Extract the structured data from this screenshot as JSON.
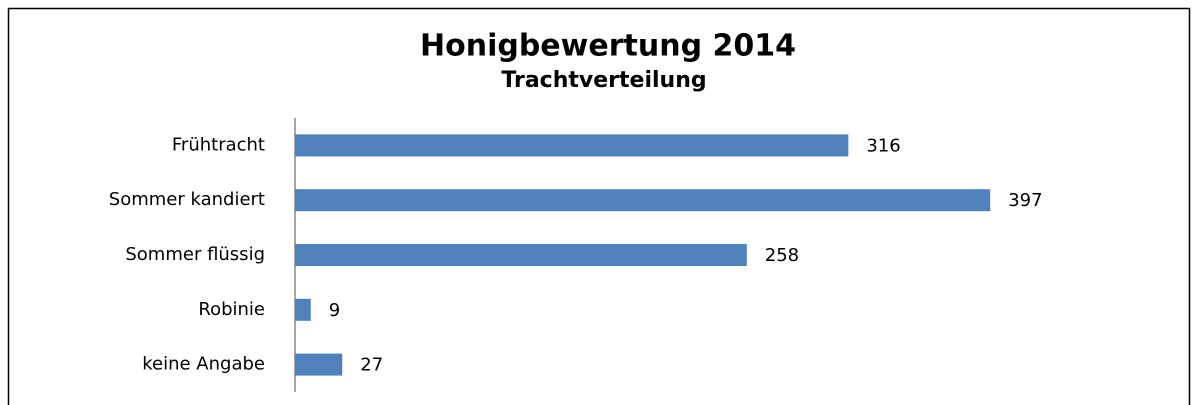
{
  "chart_data": {
    "type": "barh",
    "title": "Honigbewertung 2014",
    "subtitle": "Trachtverteilung",
    "categories": [
      "Frühtracht",
      "Sommer kandiert",
      "Sommer flüssig",
      "Robinie",
      "keine Angabe"
    ],
    "values": [
      316,
      397,
      258,
      9,
      27
    ],
    "color": "#4f81bd",
    "xlim": [
      0,
      450
    ]
  }
}
